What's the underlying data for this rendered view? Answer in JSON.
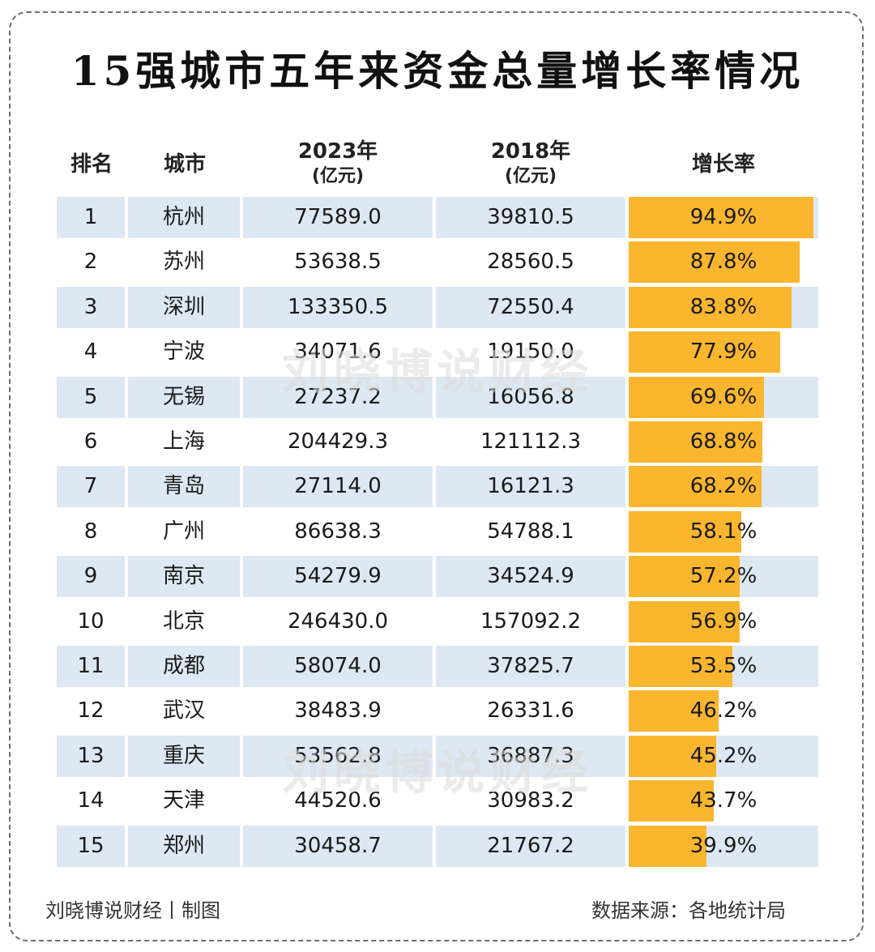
{
  "title": "15强城市五年来资金总量增长率情况",
  "headers": {
    "rank": "排名",
    "city": "城市",
    "y2023": "2023年",
    "y2023_unit": "(亿元)",
    "y2018": "2018年",
    "y2018_unit": "(亿元)",
    "growth": "增长率"
  },
  "watermark": "刘晓博说财经",
  "footer": {
    "left": "刘晓博说财经丨制图",
    "right": "数据来源：各地统计局"
  },
  "colors": {
    "bar": "#fbb62f",
    "row_band": "#dde8f3"
  },
  "chart_data": {
    "type": "table",
    "title": "15强城市五年来资金总量增长率情况",
    "columns": [
      "排名",
      "城市",
      "2023年(亿元)",
      "2018年(亿元)",
      "增长率"
    ],
    "growth_max": 100,
    "rows": [
      {
        "rank": "1",
        "city": "杭州",
        "v2023": "77589.0",
        "v2018": "39810.5",
        "growth": 94.9,
        "growth_label": "94.9%"
      },
      {
        "rank": "2",
        "city": "苏州",
        "v2023": "53638.5",
        "v2018": "28560.5",
        "growth": 87.8,
        "growth_label": "87.8%"
      },
      {
        "rank": "3",
        "city": "深圳",
        "v2023": "133350.5",
        "v2018": "72550.4",
        "growth": 83.8,
        "growth_label": "83.8%"
      },
      {
        "rank": "4",
        "city": "宁波",
        "v2023": "34071.6",
        "v2018": "19150.0",
        "growth": 77.9,
        "growth_label": "77.9%"
      },
      {
        "rank": "5",
        "city": "无锡",
        "v2023": "27237.2",
        "v2018": "16056.8",
        "growth": 69.6,
        "growth_label": "69.6%"
      },
      {
        "rank": "6",
        "city": "上海",
        "v2023": "204429.3",
        "v2018": "121112.3",
        "growth": 68.8,
        "growth_label": "68.8%"
      },
      {
        "rank": "7",
        "city": "青岛",
        "v2023": "27114.0",
        "v2018": "16121.3",
        "growth": 68.2,
        "growth_label": "68.2%"
      },
      {
        "rank": "8",
        "city": "广州",
        "v2023": "86638.3",
        "v2018": "54788.1",
        "growth": 58.1,
        "growth_label": "58.1%"
      },
      {
        "rank": "9",
        "city": "南京",
        "v2023": "54279.9",
        "v2018": "34524.9",
        "growth": 57.2,
        "growth_label": "57.2%"
      },
      {
        "rank": "10",
        "city": "北京",
        "v2023": "246430.0",
        "v2018": "157092.2",
        "growth": 56.9,
        "growth_label": "56.9%"
      },
      {
        "rank": "11",
        "city": "成都",
        "v2023": "58074.0",
        "v2018": "37825.7",
        "growth": 53.5,
        "growth_label": "53.5%"
      },
      {
        "rank": "12",
        "city": "武汉",
        "v2023": "38483.9",
        "v2018": "26331.6",
        "growth": 46.2,
        "growth_label": "46.2%"
      },
      {
        "rank": "13",
        "city": "重庆",
        "v2023": "53562.8",
        "v2018": "36887.3",
        "growth": 45.2,
        "growth_label": "45.2%"
      },
      {
        "rank": "14",
        "city": "天津",
        "v2023": "44520.6",
        "v2018": "30983.2",
        "growth": 43.7,
        "growth_label": "43.7%"
      },
      {
        "rank": "15",
        "city": "郑州",
        "v2023": "30458.7",
        "v2018": "21767.2",
        "growth": 39.9,
        "growth_label": "39.9%"
      }
    ]
  }
}
